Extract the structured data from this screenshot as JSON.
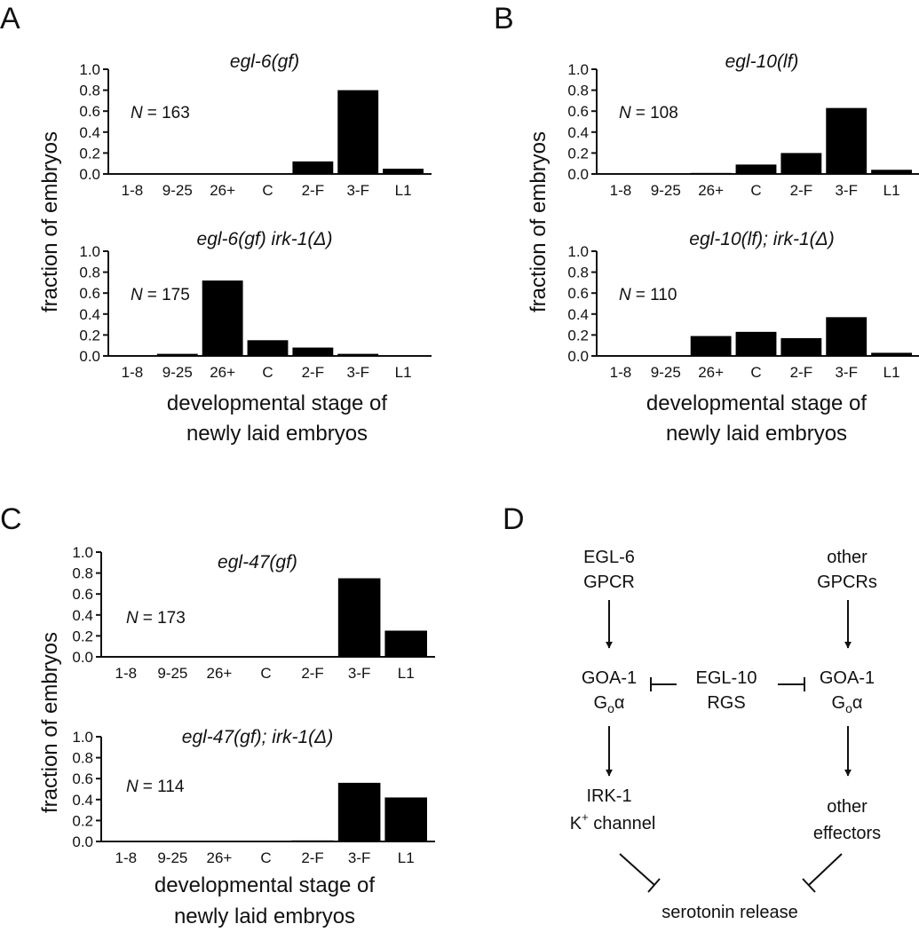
{
  "panels": [
    {
      "letter": "A",
      "ylabel": "fraction of embryos",
      "xlabel": [
        "developmental stage of",
        "newly laid embryos"
      ],
      "charts": [
        {
          "title": "egl-6(gf)",
          "n_label": "N",
          "n_value": "= 163"
        },
        {
          "title": "egl-6(gf) irk-1(Δ)",
          "n_label": "N",
          "n_value": "= 175"
        }
      ]
    },
    {
      "letter": "B",
      "ylabel": "fraction of embryos",
      "xlabel": [
        "developmental stage of",
        "newly laid embryos"
      ],
      "charts": [
        {
          "title": "egl-10(lf)",
          "n_label": "N",
          "n_value": "= 108"
        },
        {
          "title": "egl-10(lf); irk-1(Δ)",
          "n_label": "N",
          "n_value": "= 110"
        }
      ]
    },
    {
      "letter": "C",
      "ylabel": "fraction of embryos",
      "xlabel": [
        "developmental stage of",
        "newly laid embryos"
      ],
      "charts": [
        {
          "title": "egl-47(gf)",
          "n_label": "N",
          "n_value": "= 173"
        },
        {
          "title": "egl-47(gf); irk-1(Δ)",
          "n_label": "N",
          "n_value": "= 114"
        }
      ]
    }
  ],
  "chart_data": [
    {
      "type": "bar",
      "title": "egl-6(gf)",
      "categories": [
        "1-8",
        "9-25",
        "26+",
        "C",
        "2-F",
        "3-F",
        "L1"
      ],
      "values": [
        0,
        0,
        0,
        0,
        0.12,
        0.8,
        0.05
      ],
      "ylim": [
        0,
        1.0
      ],
      "yticks": [
        "0.0",
        "0.2",
        "0.4",
        "0.6",
        "0.8",
        "1.0"
      ],
      "ylabel": "fraction of embryos",
      "xlabel": "developmental stage of newly laid embryos",
      "n": 163
    },
    {
      "type": "bar",
      "title": "egl-6(gf) irk-1(Δ)",
      "categories": [
        "1-8",
        "9-25",
        "26+",
        "C",
        "2-F",
        "3-F",
        "L1"
      ],
      "values": [
        0,
        0.02,
        0.72,
        0.15,
        0.08,
        0.02,
        0
      ],
      "ylim": [
        0,
        1.0
      ],
      "yticks": [
        "0.0",
        "0.2",
        "0.4",
        "0.6",
        "0.8",
        "1.0"
      ],
      "ylabel": "fraction of embryos",
      "xlabel": "developmental stage of newly laid embryos",
      "n": 175
    },
    {
      "type": "bar",
      "title": "egl-10(lf)",
      "categories": [
        "1-8",
        "9-25",
        "26+",
        "C",
        "2-F",
        "3-F",
        "L1"
      ],
      "values": [
        0,
        0,
        0.01,
        0.09,
        0.2,
        0.63,
        0.04
      ],
      "ylim": [
        0,
        1.0
      ],
      "yticks": [
        "0.0",
        "0.2",
        "0.4",
        "0.6",
        "0.8",
        "1.0"
      ],
      "ylabel": "fraction of embryos",
      "xlabel": "developmental stage of newly laid embryos",
      "n": 108
    },
    {
      "type": "bar",
      "title": "egl-10(lf); irk-1(Δ)",
      "categories": [
        "1-8",
        "9-25",
        "26+",
        "C",
        "2-F",
        "3-F",
        "L1"
      ],
      "values": [
        0,
        0,
        0.19,
        0.23,
        0.17,
        0.37,
        0.03
      ],
      "ylim": [
        0,
        1.0
      ],
      "yticks": [
        "0.0",
        "0.2",
        "0.4",
        "0.6",
        "0.8",
        "1.0"
      ],
      "ylabel": "fraction of embryos",
      "xlabel": "developmental stage of newly laid embryos",
      "n": 110
    },
    {
      "type": "bar",
      "title": "egl-47(gf)",
      "categories": [
        "1-8",
        "9-25",
        "26+",
        "C",
        "2-F",
        "3-F",
        "L1"
      ],
      "values": [
        0,
        0,
        0,
        0,
        0,
        0.75,
        0.25
      ],
      "ylim": [
        0,
        1.0
      ],
      "yticks": [
        "0.0",
        "0.2",
        "0.4",
        "0.6",
        "0.8",
        "1.0"
      ],
      "ylabel": "fraction of embryos",
      "xlabel": "developmental stage of newly laid embryos",
      "n": 173
    },
    {
      "type": "bar",
      "title": "egl-47(gf); irk-1(Δ)",
      "categories": [
        "1-8",
        "9-25",
        "26+",
        "C",
        "2-F",
        "3-F",
        "L1"
      ],
      "values": [
        0,
        0,
        0,
        0,
        0.01,
        0.56,
        0.42
      ],
      "ylim": [
        0,
        1.0
      ],
      "yticks": [
        "0.0",
        "0.2",
        "0.4",
        "0.6",
        "0.8",
        "1.0"
      ],
      "ylabel": "fraction of embryos",
      "xlabel": "developmental stage of newly laid embryos",
      "n": 114
    }
  ],
  "diagram": {
    "letter": "D",
    "left_receptor": [
      "EGL-6",
      "GPCR"
    ],
    "right_receptor": [
      "other",
      "GPCRs"
    ],
    "left_g": {
      "line1": "GOA-1",
      "g": "G",
      "sub": "o",
      "alpha": "α"
    },
    "right_g": {
      "line1": "GOA-1",
      "g": "G",
      "sub": "o",
      "alpha": "α"
    },
    "rgs": [
      "EGL-10",
      "RGS"
    ],
    "left_effector": {
      "line1": "IRK-1",
      "k": "K",
      "sup": "+",
      "rest": " channel"
    },
    "right_effector": [
      "other",
      "effectors"
    ],
    "output": "serotonin release"
  }
}
